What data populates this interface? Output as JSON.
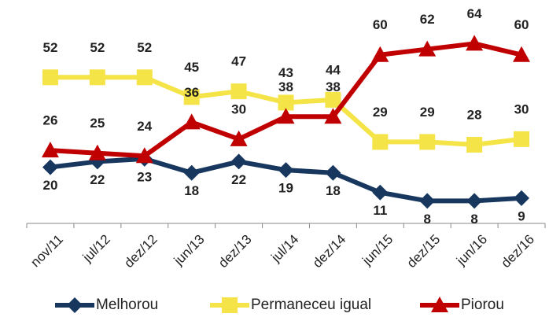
{
  "chart_data": {
    "type": "line",
    "categories": [
      "nov/11",
      "jul/12",
      "dez/12",
      "jun/13",
      "dez/13",
      "jul/14",
      "dez/14",
      "jun/15",
      "dez/15",
      "jun/16",
      "dez/16"
    ],
    "series": [
      {
        "name": "Melhorou",
        "color": "#17375e",
        "marker": "diamond",
        "label_position": "below",
        "values": [
          20,
          22,
          23,
          18,
          22,
          19,
          18,
          11,
          8,
          8,
          9
        ]
      },
      {
        "name": "Permaneceu igual",
        "color": "#f5e447",
        "marker": "square",
        "label_position": "above",
        "values": [
          52,
          52,
          52,
          45,
          47,
          43,
          44,
          29,
          29,
          28,
          30
        ]
      },
      {
        "name": "Piorou",
        "color": "#c00000",
        "marker": "triangle",
        "label_position": "above",
        "values": [
          26,
          25,
          24,
          36,
          30,
          38,
          38,
          60,
          62,
          64,
          60
        ]
      }
    ],
    "ylim": [
      0,
      70
    ],
    "legend": "bottom"
  }
}
